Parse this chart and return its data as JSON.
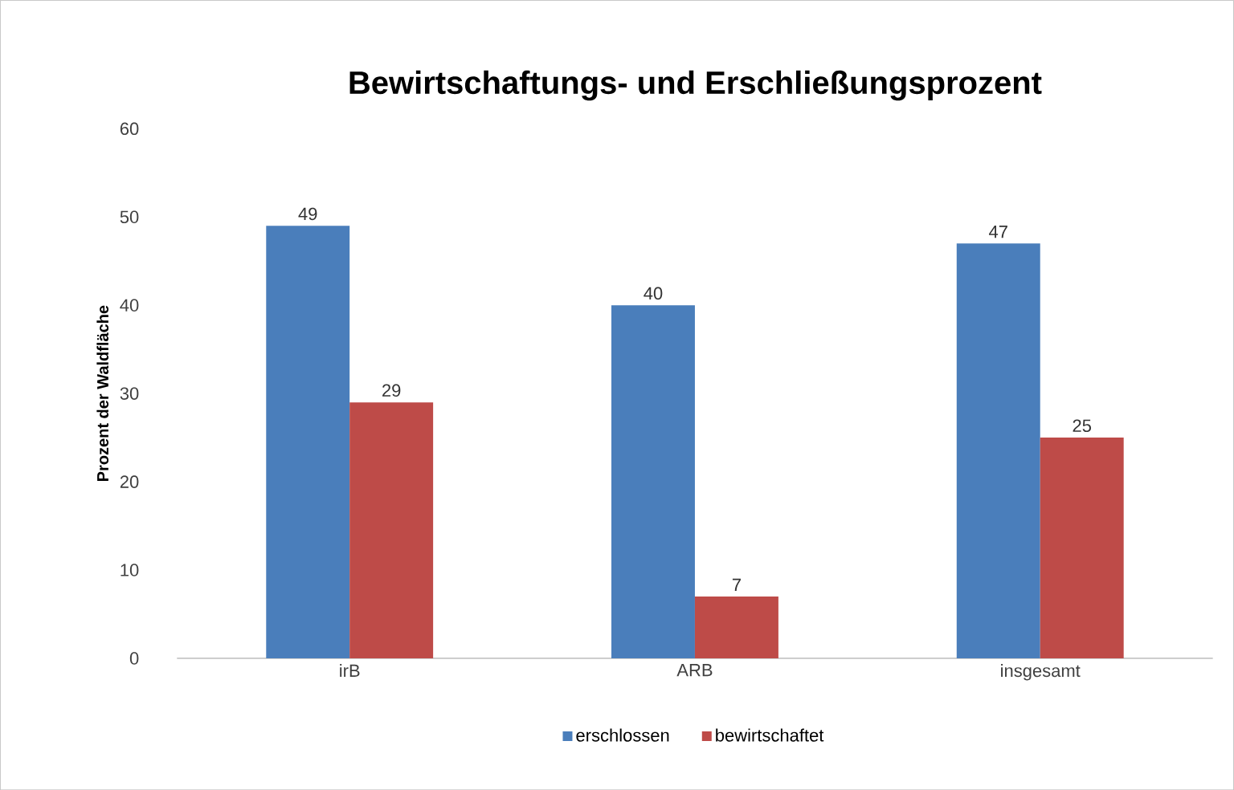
{
  "chart_data": {
    "type": "bar",
    "title": "Bewirtschaftungs- und Erschließungsprozent",
    "ylabel": "Prozent der Waldfläche",
    "categories": [
      "irB",
      "ARB",
      "insgesamt"
    ],
    "series": [
      {
        "name": "erschlossen",
        "color": "#4a7ebb",
        "values": [
          49,
          40,
          47
        ]
      },
      {
        "name": "bewirtschaftet",
        "color": "#be4b48",
        "values": [
          29,
          7,
          25
        ]
      }
    ],
    "ylim": [
      0,
      60
    ],
    "yticks": [
      0,
      10,
      20,
      30,
      40,
      50,
      60
    ],
    "data_labels": true,
    "legend": "bottom"
  }
}
